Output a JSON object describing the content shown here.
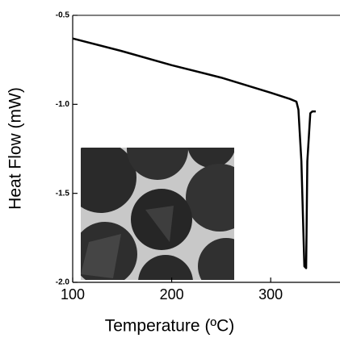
{
  "chart_data": {
    "type": "line",
    "x_label": "Temperature (ºC)",
    "y_label": "Heat Flow (mW)",
    "x": [
      100,
      149,
      200,
      250,
      300,
      319.5,
      326,
      328,
      331,
      334,
      335.8,
      337,
      340,
      342,
      345.5
    ],
    "values": [
      -0.63,
      -0.7,
      -0.78,
      -0.85,
      -0.935,
      -0.97,
      -0.985,
      -1.03,
      -1.32,
      -1.91,
      -1.92,
      -1.32,
      -1.05,
      -1.04,
      -1.04
    ],
    "color": "#000000",
    "xlim": [
      100,
      370
    ],
    "xticks": [
      100,
      200,
      300
    ],
    "ylim": [
      -2.0,
      -0.5
    ],
    "yticks": [
      -0.5,
      {
        "value": -1.0,
        "label": "-1.0"
      },
      -1.5,
      {
        "value": -2.0,
        "label": "-2.0"
      }
    ]
  }
}
